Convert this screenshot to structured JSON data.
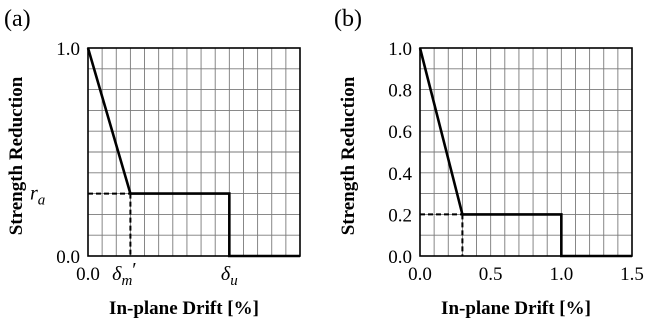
{
  "chart_data": [
    {
      "type": "line",
      "panel_label": "(a)",
      "xlabel": "In-plane Drift [%]",
      "ylabel": "Strength Reduction",
      "x_tick_labels": [
        {
          "x": 0.0,
          "text": "0.0",
          "sub": ""
        },
        {
          "x": 0.3,
          "text": "δm′",
          "sub": ""
        },
        {
          "x": 1.0,
          "text": "δu",
          "sub": ""
        }
      ],
      "y_tick_labels": [
        {
          "y": 1.0,
          "text": "1.0"
        },
        {
          "y": 0.3,
          "text": "ra"
        },
        {
          "y": 0.0,
          "text": "0.0"
        }
      ],
      "xlim": [
        0,
        1.5
      ],
      "ylim": [
        0,
        1.0
      ],
      "grid": true,
      "series": [
        {
          "x": [
            0.0,
            0.3,
            1.0,
            1.0,
            1.5
          ],
          "y": [
            1.0,
            0.3,
            0.3,
            0.0,
            0.0
          ]
        }
      ],
      "guides": {
        "x": 0.3,
        "y": 0.3
      }
    },
    {
      "type": "line",
      "panel_label": "(b)",
      "xlabel": "In-plane Drift [%]",
      "ylabel": "Strength Reduction",
      "x_tick_labels": [
        {
          "x": 0.0,
          "text": "0.0"
        },
        {
          "x": 0.5,
          "text": "0.5"
        },
        {
          "x": 1.0,
          "text": "1.0"
        },
        {
          "x": 1.5,
          "text": "1.5"
        }
      ],
      "y_tick_labels": [
        {
          "y": 0.0,
          "text": "0.0"
        },
        {
          "y": 0.2,
          "text": "0.2"
        },
        {
          "y": 0.4,
          "text": "0.4"
        },
        {
          "y": 0.6,
          "text": "0.6"
        },
        {
          "y": 0.8,
          "text": "0.8"
        },
        {
          "y": 1.0,
          "text": "1.0"
        }
      ],
      "xlim": [
        0,
        1.5
      ],
      "ylim": [
        0,
        1.0
      ],
      "grid": true,
      "series": [
        {
          "x": [
            0.0,
            0.3,
            1.0,
            1.0,
            1.5
          ],
          "y": [
            1.0,
            0.2,
            0.2,
            0.0,
            0.0
          ]
        }
      ],
      "guides": {
        "x": 0.3,
        "y": 0.2
      }
    }
  ]
}
